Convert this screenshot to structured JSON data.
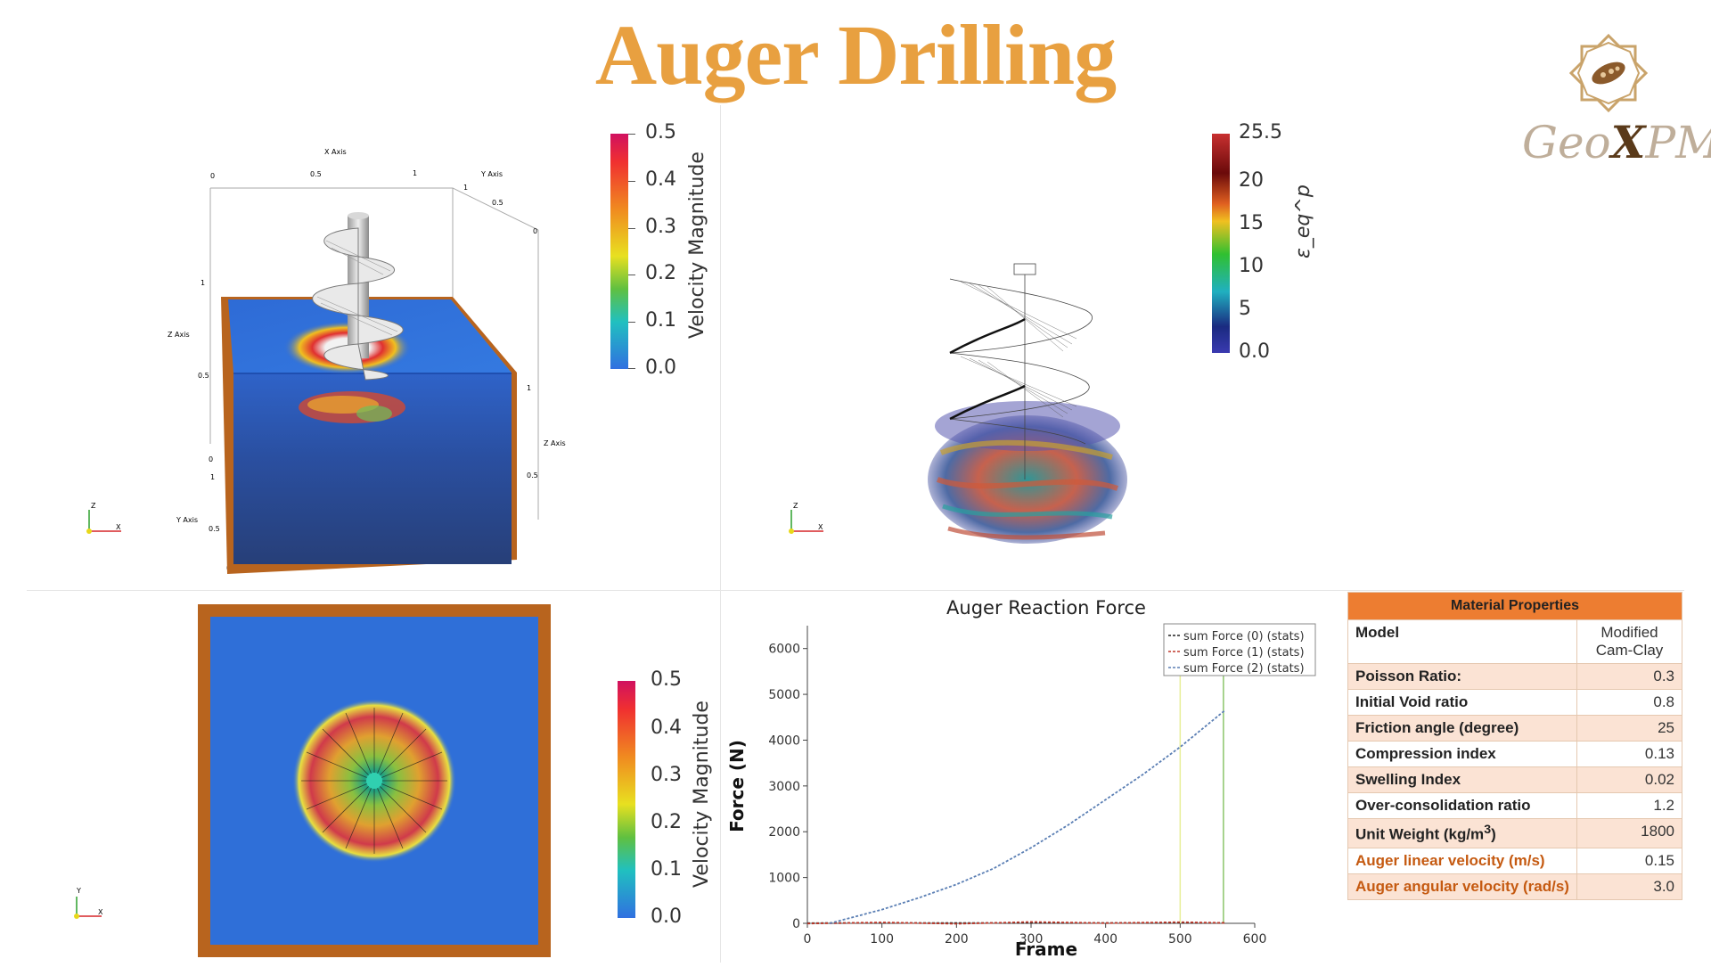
{
  "title": "Auger Drilling",
  "logo": {
    "text_geo": "Geo",
    "text_x": "X",
    "text_pm": "PM"
  },
  "panel1": {
    "colorbar": {
      "title": "Velocity Magnitude",
      "ticks": [
        "0.5",
        "0.4",
        "0.3",
        "0.2",
        "0.1",
        "0.0"
      ]
    },
    "axis_labels": {
      "x_axis": "X Axis",
      "y_axis": "Y Axis",
      "z_axis": "Z Axis",
      "z_axis2": "Z Axis",
      "y_axis2": "Y Axis"
    },
    "tick_labels": {
      "x0": "0",
      "x05": "0.5",
      "x1": "1",
      "y1": "1",
      "y05": "0.5",
      "y0": "0",
      "z1": "1",
      "z05": "0.5",
      "z0": "0",
      "z1b": "1",
      "z05b": "0.5",
      "y1b": "1",
      "y05b": "0.5",
      "y0b": "0"
    },
    "triad": {
      "z": "Z",
      "x": "X"
    }
  },
  "panel2": {
    "colorbar": {
      "title": "ε_eq^p",
      "ticks": [
        "25.5",
        "20",
        "15",
        "10",
        "5",
        "0.0"
      ]
    },
    "triad": {
      "z": "Z",
      "x": "X"
    }
  },
  "panel3": {
    "colorbar": {
      "title": "Velocity Magnitude",
      "ticks": [
        "0.5",
        "0.4",
        "0.3",
        "0.2",
        "0.1",
        "0.0"
      ]
    },
    "triad": {
      "y": "Y",
      "x": "X"
    }
  },
  "chart_data": {
    "type": "line",
    "title": "Auger Reaction Force",
    "xlabel": "Frame",
    "ylabel": "Force (N)",
    "xlim": [
      0,
      600
    ],
    "ylim": [
      0,
      6500
    ],
    "x_ticks": [
      0,
      100,
      200,
      300,
      400,
      500,
      600
    ],
    "y_ticks": [
      0,
      1000,
      2000,
      3000,
      4000,
      5000,
      6000
    ],
    "legend_position": "top-right",
    "series": [
      {
        "name": "sum Force (0) (stats)",
        "color": "#222222",
        "x": [
          0,
          100,
          200,
          300,
          400,
          500,
          560
        ],
        "values": [
          5,
          8,
          6,
          10,
          7,
          12,
          10
        ]
      },
      {
        "name": "sum Force (1) (stats)",
        "color": "#c0392b",
        "x": [
          0,
          100,
          200,
          300,
          400,
          500,
          560
        ],
        "values": [
          -5,
          20,
          -10,
          30,
          5,
          25,
          10
        ]
      },
      {
        "name": "sum Force (2) (stats)",
        "color": "#5b7fb4",
        "x": [
          30,
          100,
          150,
          200,
          250,
          300,
          350,
          400,
          450,
          500,
          560
        ],
        "values": [
          0,
          300,
          560,
          850,
          1200,
          1650,
          2150,
          2700,
          3250,
          3850,
          4650
        ]
      }
    ],
    "vertical_markers": [
      {
        "x": 500,
        "color": "#e8ef9a"
      },
      {
        "x": 558,
        "color": "#8cc66b"
      }
    ]
  },
  "material_properties": {
    "header": "Material Properties",
    "rows": [
      {
        "label": "Model",
        "value_line1": "Modified",
        "value_line2": "Cam-Clay",
        "highlight": false
      },
      {
        "label": "Poisson Ratio:",
        "value": "0.3",
        "highlight": false
      },
      {
        "label": "Initial Void ratio",
        "value": "0.8",
        "highlight": false
      },
      {
        "label": "Friction angle (degree)",
        "value": "25",
        "highlight": false
      },
      {
        "label": "Compression index",
        "value": "0.13",
        "highlight": false
      },
      {
        "label": "Swelling Index",
        "value": "0.02",
        "highlight": false
      },
      {
        "label": "Over-consolidation ratio",
        "value": "1.2",
        "highlight": false
      },
      {
        "label": "Unit Weight (kg/m",
        "label_sup": "3",
        "label_end": ")",
        "value": "1800",
        "highlight": false
      },
      {
        "label": "Auger linear velocity (m/s)",
        "value": "0.15",
        "highlight": true
      },
      {
        "label": "Auger angular velocity (rad/s)",
        "value": "3.0",
        "highlight": true
      }
    ]
  }
}
